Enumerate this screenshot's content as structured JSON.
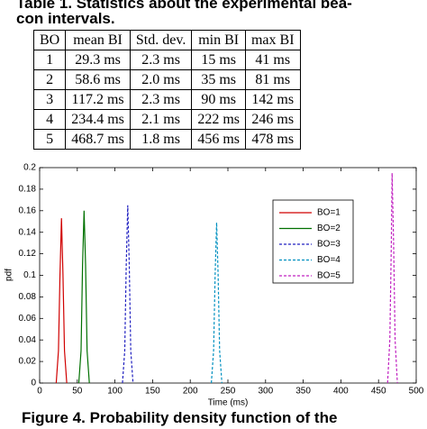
{
  "header": {
    "title_lines": [
      "Table 1. Statistics about the experimental bea-",
      "con intervals."
    ]
  },
  "table": {
    "columns": [
      "BO",
      "mean BI",
      "Std. dev.",
      "min BI",
      "max BI"
    ],
    "rows": [
      [
        "1",
        "29.3 ms",
        "2.3 ms",
        "15 ms",
        "41 ms"
      ],
      [
        "2",
        "58.6 ms",
        "2.0 ms",
        "35 ms",
        "81 ms"
      ],
      [
        "3",
        "117.2 ms",
        "2.3 ms",
        "90 ms",
        "142 ms"
      ],
      [
        "4",
        "234.4 ms",
        "2.1 ms",
        "222 ms",
        "246 ms"
      ],
      [
        "5",
        "468.7 ms",
        "1.8 ms",
        "456 ms",
        "478 ms"
      ]
    ]
  },
  "chart_data": {
    "type": "line",
    "xlabel": "Time (ms)",
    "ylabel": "pdf",
    "xlim": [
      0,
      500
    ],
    "ylim": [
      0,
      0.2
    ],
    "xticks": [
      0,
      50,
      100,
      150,
      200,
      250,
      300,
      350,
      400,
      450,
      500
    ],
    "yticks": [
      0,
      0.02,
      0.04,
      0.06,
      0.08,
      0.1,
      0.12,
      0.14,
      0.16,
      0.18,
      0.2
    ],
    "legend": "upper right",
    "series": [
      {
        "name": "BO=1",
        "color": "#d00000",
        "linestyle": "solid",
        "x": [
          22,
          25,
          27,
          29,
          31,
          33,
          36
        ],
        "values": [
          0,
          0.03,
          0.1,
          0.153,
          0.1,
          0.03,
          0
        ]
      },
      {
        "name": "BO=2",
        "color": "#007000",
        "linestyle": "solid",
        "x": [
          52,
          55,
          57,
          59,
          61,
          63,
          66
        ],
        "values": [
          0,
          0.03,
          0.11,
          0.16,
          0.11,
          0.03,
          0
        ]
      },
      {
        "name": "BO=3",
        "color": "#2020c0",
        "linestyle": "dashed",
        "x": [
          110,
          113,
          115,
          117,
          119,
          121,
          124
        ],
        "values": [
          0,
          0.03,
          0.11,
          0.165,
          0.11,
          0.03,
          0
        ]
      },
      {
        "name": "BO=4",
        "color": "#0090c0",
        "linestyle": "dashed",
        "x": [
          228,
          231,
          233,
          235,
          237,
          239,
          242
        ],
        "values": [
          0,
          0.03,
          0.1,
          0.149,
          0.1,
          0.03,
          0
        ]
      },
      {
        "name": "BO=5",
        "color": "#c020c0",
        "linestyle": "dashed",
        "x": [
          462,
          465,
          467,
          468,
          470,
          472,
          475
        ],
        "values": [
          0,
          0.04,
          0.13,
          0.195,
          0.13,
          0.04,
          0
        ]
      }
    ]
  },
  "caption": "Figure 4. Probability density function of the"
}
